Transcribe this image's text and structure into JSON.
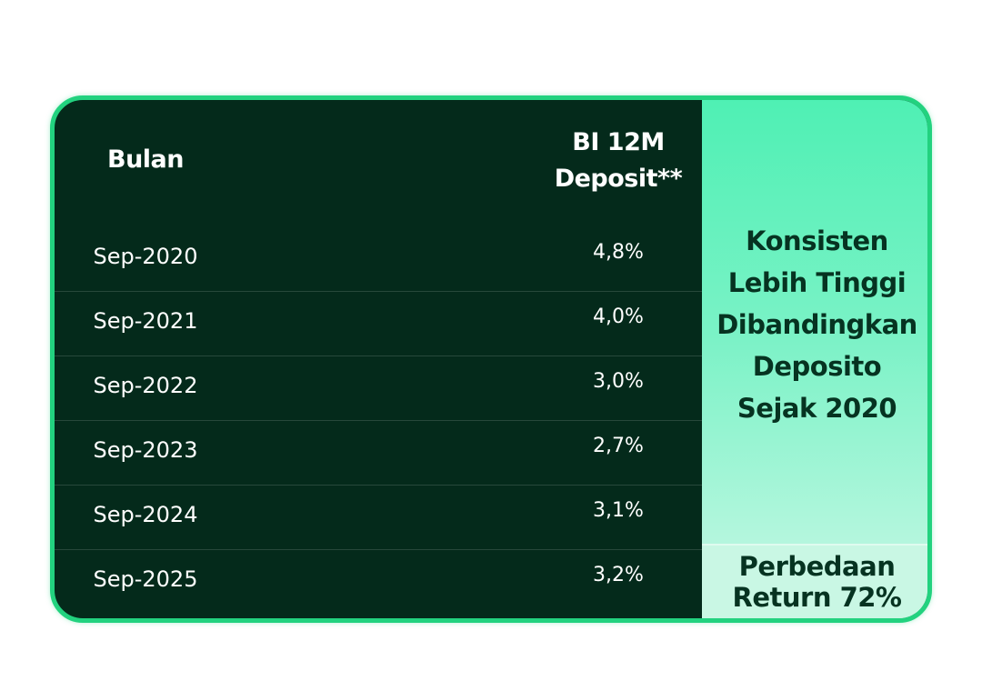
{
  "table": {
    "header_month": "Bulan",
    "header_rate_line1": "BI 12M",
    "header_rate_line2": "Deposit**",
    "rows": [
      {
        "month": "Sep-2020",
        "rate": "4,8%"
      },
      {
        "month": "Sep-2021",
        "rate": "4,0%"
      },
      {
        "month": "Sep-2022",
        "rate": "3,0%"
      },
      {
        "month": "Sep-2023",
        "rate": "2,7%"
      },
      {
        "month": "Sep-2024",
        "rate": "3,1%"
      },
      {
        "month": "Sep-2025",
        "rate": "3,2%"
      }
    ]
  },
  "highlight": {
    "lines": [
      "Konsisten",
      "Lebih Tinggi",
      "Dibandingkan",
      "Deposito",
      "Sejak 2020"
    ],
    "footer_line1": "Perbedaan",
    "footer_line2": "Return 72%"
  },
  "colors": {
    "card_background": "#042a1b",
    "border": "#22d27f",
    "highlight_top": "#4ff0b4",
    "highlight_bottom": "#c9f7e4",
    "highlight_text": "#063321"
  }
}
